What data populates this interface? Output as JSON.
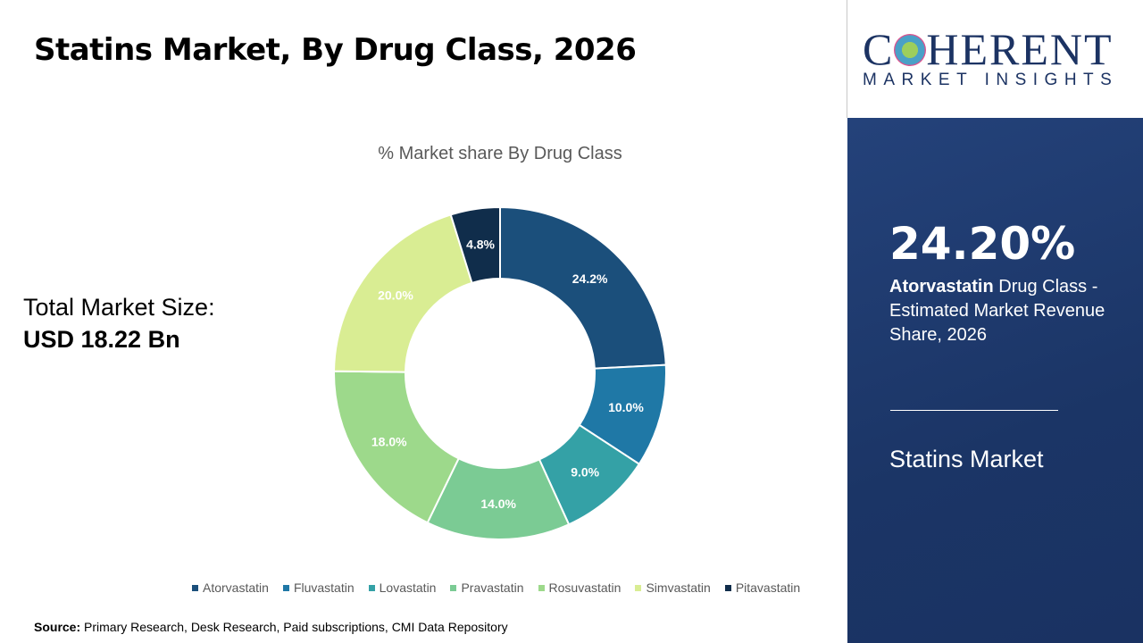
{
  "header": {
    "title": "Statins Market, By Drug Class, 2026"
  },
  "logo": {
    "line1_a": "C",
    "line1_b": "HERENT",
    "line2": "MARKET INSIGHTS"
  },
  "total": {
    "label": "Total Market Size:",
    "value": "USD 18.22 Bn"
  },
  "panel": {
    "percent": "24.20%",
    "highlight": "Atorvastatin",
    "desc": " Drug Class - Estimated Market Revenue Share, 2026",
    "market": "Statins Market"
  },
  "source": {
    "label": "Source:",
    "text": " Primary Research, Desk Research, Paid subscriptions, CMI Data Repository"
  },
  "chart_data": {
    "type": "pie",
    "donut": true,
    "title": "% Market share By Drug Class",
    "categories": [
      "Atorvastatin",
      "Fluvastatin",
      "Lovastatin",
      "Pravastatin",
      "Rosuvastatin",
      "Simvastatin",
      "Pitavastatin"
    ],
    "values": [
      24.2,
      10.0,
      9.0,
      14.0,
      18.0,
      20.0,
      4.8
    ],
    "labels": [
      "24.2%",
      "10.0%",
      "9.0%",
      "14.0%",
      "18.0%",
      "20.0%",
      "4.8%"
    ],
    "colors": [
      "#1b4f7b",
      "#1f78a6",
      "#34a1a6",
      "#7bcb94",
      "#9dd98b",
      "#d9ed93",
      "#102d4b"
    ],
    "label_colors": [
      "#ffffff",
      "#ffffff",
      "#ffffff",
      "#ffffff",
      "#ffffff",
      "#ffffff",
      "#ffffff"
    ],
    "legend_position": "bottom"
  }
}
